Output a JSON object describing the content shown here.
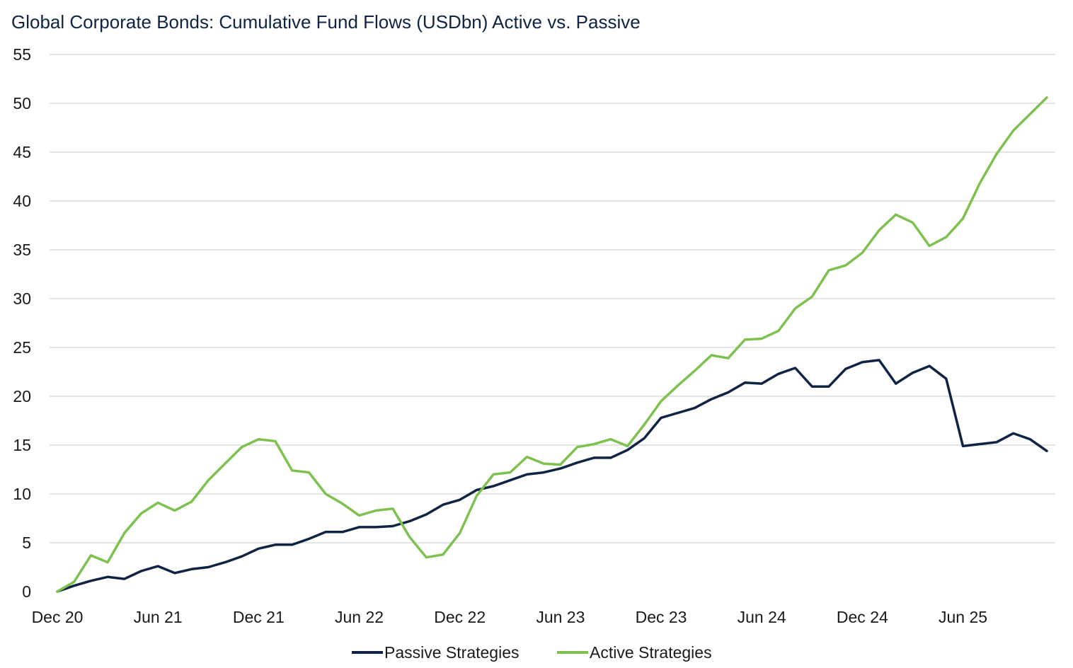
{
  "chart_data": {
    "type": "line",
    "title": "Global Corporate Bonds: Cumulative Fund Flows (USDbn) Active vs. Passive",
    "xlabel": "",
    "ylabel": "",
    "ylim": [
      0,
      55
    ],
    "yticks": [
      0,
      5,
      10,
      15,
      20,
      25,
      30,
      35,
      40,
      45,
      50,
      55
    ],
    "grid": true,
    "legend": "bottom-center",
    "xtick_labels": [
      {
        "label": "Dec 20",
        "index": 0
      },
      {
        "label": "Jun 21",
        "index": 6
      },
      {
        "label": "Dec 21",
        "index": 12
      },
      {
        "label": "Jun 22",
        "index": 18
      },
      {
        "label": "Dec 22",
        "index": 24
      },
      {
        "label": "Jun 23",
        "index": 30
      },
      {
        "label": "Dec 23",
        "index": 36
      },
      {
        "label": "Jun 24",
        "index": 42
      },
      {
        "label": "Dec 24",
        "index": 48
      },
      {
        "label": "Jun 25",
        "index": 54
      }
    ],
    "series": [
      {
        "name": "Passive Strategies",
        "color": "#0f2444",
        "values": [
          0,
          0.6,
          1.1,
          1.5,
          1.3,
          2.1,
          2.6,
          1.9,
          2.3,
          2.5,
          3.0,
          3.6,
          4.4,
          4.8,
          4.8,
          5.4,
          6.1,
          6.1,
          6.6,
          6.6,
          6.7,
          7.2,
          7.9,
          8.9,
          9.4,
          10.4,
          10.8,
          11.4,
          12.0,
          12.2,
          12.6,
          13.2,
          13.7,
          13.7,
          14.5,
          15.7,
          17.8,
          18.3,
          18.8,
          19.7,
          20.4,
          21.4,
          21.3,
          22.3,
          22.9,
          21.0,
          21.0,
          22.8,
          23.5,
          23.7,
          21.3,
          22.4,
          23.1,
          21.8,
          14.9,
          15.1,
          15.3,
          16.2,
          15.6,
          14.4
        ]
      },
      {
        "name": "Active Strategies",
        "color": "#7dc14f",
        "values": [
          0,
          1.0,
          3.7,
          3.0,
          6.0,
          8.0,
          9.1,
          8.3,
          9.2,
          11.4,
          13.1,
          14.8,
          15.6,
          15.4,
          12.4,
          12.2,
          10.0,
          9.0,
          7.8,
          8.3,
          8.5,
          5.6,
          3.5,
          3.8,
          6.0,
          9.8,
          12.0,
          12.2,
          13.8,
          13.1,
          13.0,
          14.8,
          15.1,
          15.6,
          14.9,
          17.1,
          19.5,
          21.1,
          22.6,
          24.2,
          23.9,
          25.8,
          25.9,
          26.7,
          29.0,
          30.2,
          32.9,
          33.4,
          34.7,
          37.0,
          38.6,
          37.8,
          35.4,
          36.3,
          38.2,
          41.8,
          44.8,
          47.2,
          48.9,
          50.6
        ]
      }
    ]
  }
}
